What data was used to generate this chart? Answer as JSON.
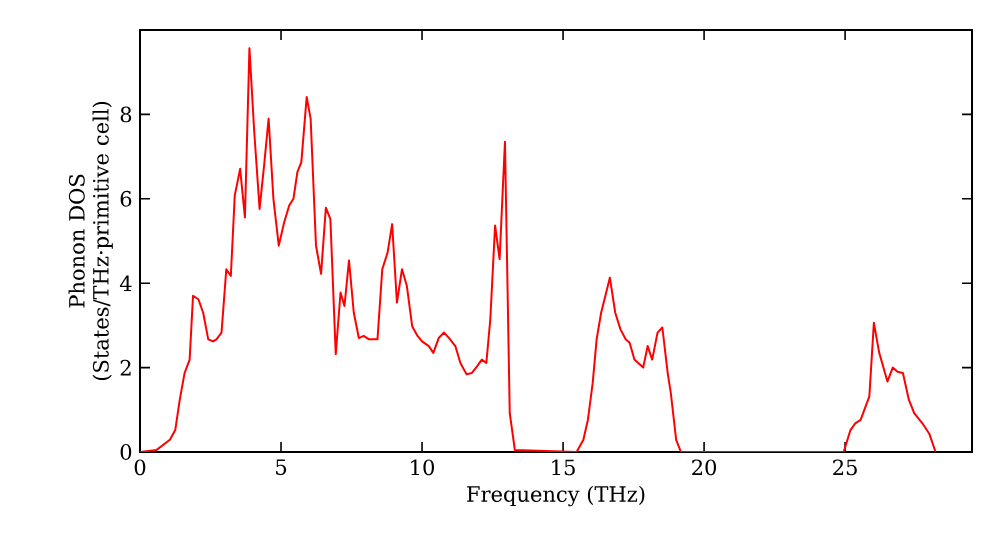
{
  "chart_data": {
    "type": "line",
    "xlabel": "Frequency (THz)",
    "ylabel": "Phonon DOS (States/THz·primitive cell)",
    "xlim": [
      0,
      29.5
    ],
    "ylim": [
      0,
      10
    ],
    "xticks": [
      0,
      5,
      10,
      15,
      20,
      25
    ],
    "yticks": [
      0,
      2,
      4,
      6,
      8
    ],
    "marker": "none",
    "line_style": "solid",
    "series": [
      {
        "color": "#ff0000",
        "x": [
          0,
          0.59,
          1.06,
          1.25,
          1.41,
          1.58,
          1.76,
          1.88,
          2.07,
          2.24,
          2.42,
          2.59,
          2.71,
          2.89,
          3.06,
          3.22,
          3.36,
          3.55,
          3.72,
          3.88,
          4.05,
          4.24,
          4.4,
          4.56,
          4.73,
          4.92,
          5.11,
          5.29,
          5.44,
          5.58,
          5.72,
          5.91,
          6.05,
          6.24,
          6.42,
          6.59,
          6.75,
          6.94,
          7.11,
          7.25,
          7.41,
          7.58,
          7.76,
          7.93,
          8.12,
          8.42,
          8.59,
          8.78,
          8.94,
          9.11,
          9.29,
          9.46,
          9.65,
          9.84,
          10.0,
          10.24,
          10.4,
          10.59,
          10.78,
          10.96,
          11.18,
          11.36,
          11.58,
          11.76,
          11.95,
          12.12,
          12.28,
          12.42,
          12.59,
          12.75,
          12.94,
          13.11,
          13.29,
          15.48,
          15.72,
          15.88,
          16.05,
          16.19,
          16.35,
          16.66,
          16.85,
          17.04,
          17.22,
          17.36,
          17.53,
          17.84,
          18.0,
          18.16,
          18.35,
          18.52,
          18.71,
          18.82,
          19.01,
          19.18,
          24.95,
          25.19,
          25.36,
          25.55,
          25.86,
          26.02,
          26.21,
          26.5,
          26.69,
          26.86,
          27.05,
          27.26,
          27.45,
          27.74,
          27.98,
          28.21
        ],
        "values": [
          0,
          0.05,
          0.29,
          0.52,
          1.24,
          1.87,
          2.19,
          3.7,
          3.62,
          3.3,
          2.67,
          2.62,
          2.67,
          2.83,
          4.33,
          4.17,
          6.08,
          6.71,
          5.56,
          9.57,
          7.59,
          5.76,
          6.79,
          7.9,
          6.0,
          4.89,
          5.44,
          5.84,
          6.0,
          6.63,
          6.87,
          8.41,
          7.9,
          4.89,
          4.22,
          5.79,
          5.52,
          2.32,
          3.78,
          3.46,
          4.54,
          3.3,
          2.7,
          2.75,
          2.67,
          2.67,
          4.33,
          4.73,
          5.4,
          3.54,
          4.33,
          3.94,
          2.98,
          2.75,
          2.62,
          2.51,
          2.35,
          2.7,
          2.83,
          2.7,
          2.51,
          2.11,
          1.84,
          1.87,
          2.03,
          2.19,
          2.11,
          3.14,
          5.37,
          4.57,
          7.35,
          0.92,
          0.05,
          0,
          0.29,
          0.76,
          1.63,
          2.67,
          3.3,
          4.13,
          3.3,
          2.9,
          2.67,
          2.59,
          2.19,
          2.0,
          2.51,
          2.19,
          2.83,
          2.95,
          1.87,
          1.4,
          0.29,
          0,
          0,
          0.52,
          0.68,
          0.76,
          1.32,
          3.06,
          2.35,
          1.67,
          2.0,
          1.9,
          1.87,
          1.24,
          0.92,
          0.68,
          0.44,
          0
        ]
      }
    ]
  }
}
